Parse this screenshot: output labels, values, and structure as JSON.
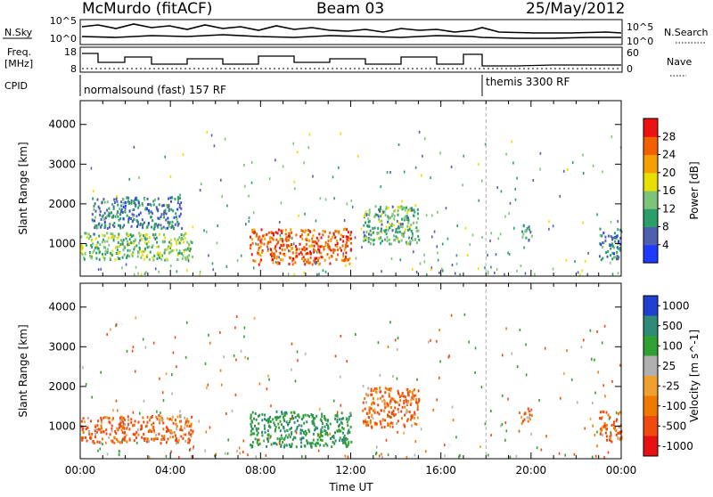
{
  "header": {
    "station": "McMurdo (fitACF)",
    "beam": "Beam 03",
    "date": "25/May/2012"
  },
  "summary_panel": {
    "left_label_nsky": "N.Sky",
    "left_label_freq_1": "Freq.",
    "left_label_freq_2": "[MHz]",
    "left_label_cpid": "CPID",
    "right_label_nsearch": "N.Search",
    "right_label_nave": "Nave",
    "left_ticks_noise": [
      "10^5",
      "10^0"
    ],
    "right_ticks_noise": [
      "10^5",
      "10^0"
    ],
    "left_ticks_freq": [
      "18",
      "8"
    ],
    "right_ticks_nave": [
      "60",
      "0"
    ],
    "cpid_1": "normalsound (fast) 157 RF",
    "cpid_2": "themis 3300 RF"
  },
  "chart_data": [
    {
      "type": "heatmap",
      "panel": "power",
      "title": "",
      "xlabel": "",
      "ylabel": "Slant Range [km]",
      "xlim": [
        "00:00",
        "24:00"
      ],
      "ylim": [
        180,
        4600
      ],
      "y_ticks": [
        1000,
        2000,
        3000,
        4000
      ],
      "colorbar": {
        "label": "Power [dB]",
        "ticks": [
          "4",
          "8",
          "12",
          "16",
          "20",
          "24",
          "28"
        ],
        "colors": [
          "#1e3cff",
          "#4f5fb0",
          "#2b9e6a",
          "#7cc47a",
          "#e8e000",
          "#f4a000",
          "#f36000",
          "#ee1111"
        ]
      },
      "echo_regions": [
        {
          "x_start_h": 0.0,
          "x_end_h": 5.0,
          "range_start_km": 600,
          "range_end_km": 1300,
          "value_dB": 14
        },
        {
          "x_start_h": 0.5,
          "x_end_h": 4.5,
          "range_start_km": 1400,
          "range_end_km": 2200,
          "value_dB": 8
        },
        {
          "x_start_h": 7.5,
          "x_end_h": 12.0,
          "range_start_km": 500,
          "range_end_km": 1400,
          "value_dB": 26
        },
        {
          "x_start_h": 12.5,
          "x_end_h": 15.0,
          "range_start_km": 1000,
          "range_end_km": 2000,
          "value_dB": 12
        },
        {
          "x_start_h": 19.5,
          "x_end_h": 20.0,
          "range_start_km": 1100,
          "range_end_km": 1500,
          "value_dB": 10
        },
        {
          "x_start_h": 23.0,
          "x_end_h": 24.0,
          "range_start_km": 600,
          "range_end_km": 1400,
          "value_dB": 8
        }
      ]
    },
    {
      "type": "heatmap",
      "panel": "velocity",
      "title": "",
      "xlabel": "Time UT",
      "ylabel": "Slant Range [km]",
      "xlim": [
        "00:00",
        "24:00"
      ],
      "ylim": [
        180,
        4600
      ],
      "x_ticks": [
        "00:00",
        "04:00",
        "08:00",
        "12:00",
        "16:00",
        "20:00",
        "00:00"
      ],
      "y_ticks": [
        1000,
        2000,
        3000,
        4000
      ],
      "colorbar": {
        "label": "Velocity [m s^-1]",
        "ticks": [
          "1000",
          "500",
          "100",
          "25",
          "-25",
          "-100",
          "-500",
          "-1000"
        ],
        "colors": [
          "#2040d0",
          "#2f8b78",
          "#30a030",
          "#b0b0b0",
          "#f0a030",
          "#ef7a00",
          "#f04a10",
          "#e81010"
        ]
      },
      "echo_regions": [
        {
          "x_start_h": 0.0,
          "x_end_h": 5.0,
          "range_start_km": 600,
          "range_end_km": 1300,
          "value_ms": -100
        },
        {
          "x_start_h": 7.5,
          "x_end_h": 12.0,
          "range_start_km": 500,
          "range_end_km": 1400,
          "value_ms": 500
        },
        {
          "x_start_h": 12.5,
          "x_end_h": 15.0,
          "range_start_km": 1000,
          "range_end_km": 2000,
          "value_ms": -100
        },
        {
          "x_start_h": 19.5,
          "x_end_h": 20.0,
          "range_start_km": 1100,
          "range_end_km": 1500,
          "value_ms": -100
        },
        {
          "x_start_h": 23.0,
          "x_end_h": 24.0,
          "range_start_km": 600,
          "range_end_km": 1400,
          "value_ms": -100
        }
      ]
    }
  ]
}
